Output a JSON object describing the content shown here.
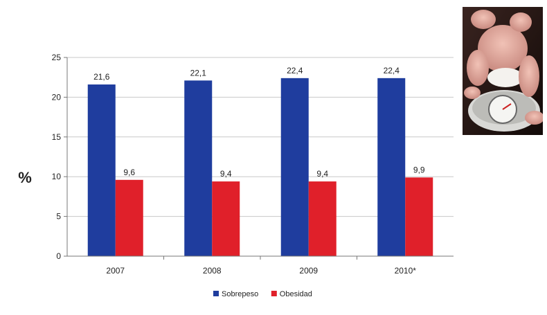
{
  "chart_data": {
    "type": "bar",
    "ylabel": "%",
    "ylim": [
      0,
      25
    ],
    "yticks": [
      0,
      5,
      10,
      15,
      20,
      25
    ],
    "grid": true,
    "categories": [
      "2007",
      "2008",
      "2009",
      "2010*"
    ],
    "series": [
      {
        "name": "Sobrepeso",
        "color": "#1f3d9e",
        "values": [
          21.6,
          22.1,
          22.4,
          22.4
        ],
        "labels": [
          "21,6",
          "22,1",
          "22,4",
          "22,4"
        ]
      },
      {
        "name": "Obesidad",
        "color": "#e0202a",
        "values": [
          9.6,
          9.4,
          9.4,
          9.9
        ],
        "labels": [
          "9,6",
          "9,4",
          "9,4",
          "9,9"
        ]
      }
    ],
    "legend_position": "bottom"
  },
  "image": {
    "icon": "baby-on-scale-photo"
  }
}
